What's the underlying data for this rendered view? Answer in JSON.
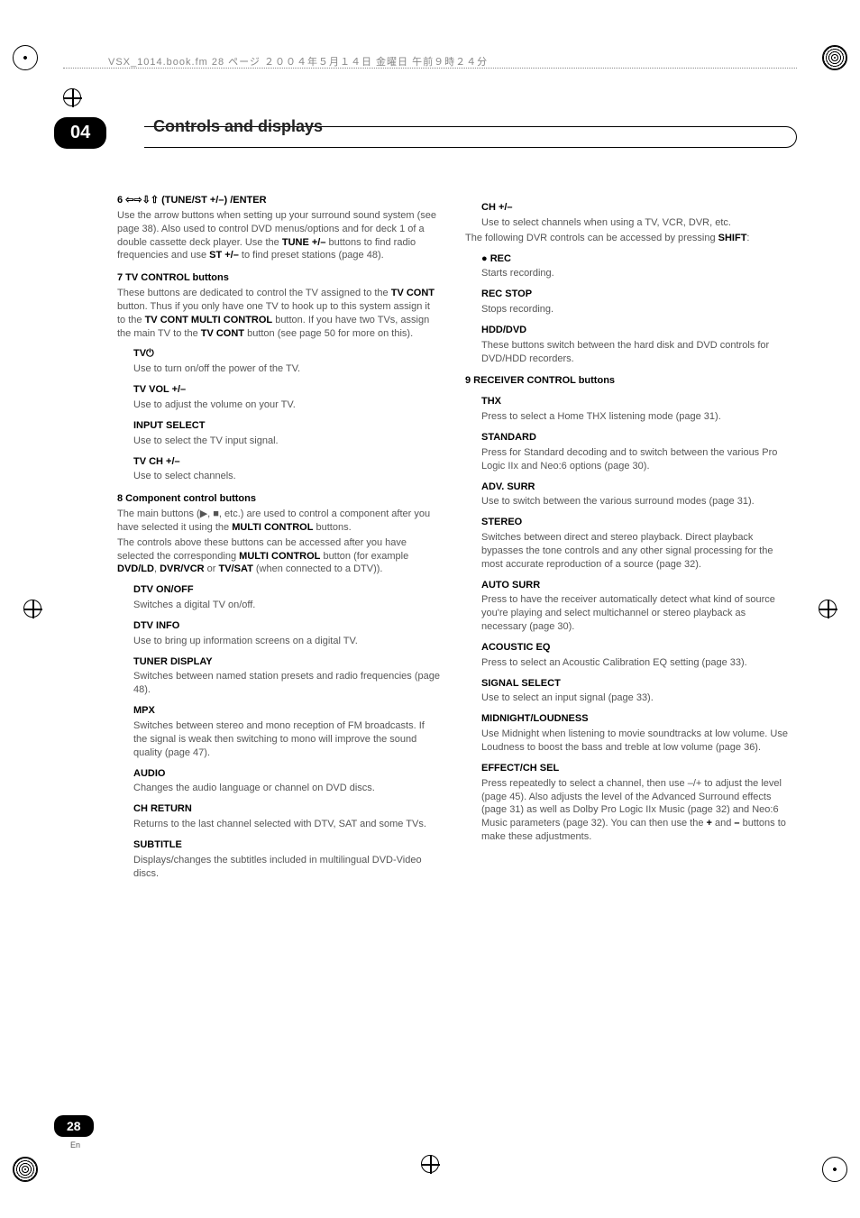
{
  "topline": "VSX_1014.book.fm 28 ページ ２００４年５月１４日 金曜日 午前９時２４分",
  "chapter": {
    "num": "04",
    "title": "Controls and displays"
  },
  "page": {
    "num": "28",
    "lang": "En"
  },
  "left": {
    "s6": {
      "head": "6    ⇦⇨⇩⇧ (TUNE/ST +/–) /ENTER",
      "body1": "Use the arrow buttons when setting up your surround sound system (see page 38). Also used to control DVD menus/options and for deck 1 of a double cassette deck player. Use the ",
      "b1": "TUNE +/–",
      "body2": " buttons to find radio frequencies and use ",
      "b2": "ST +/–",
      "body3": " to find preset stations (page 48)."
    },
    "s7": {
      "head": "7    TV CONTROL buttons",
      "body1": "These buttons are dedicated to control the TV assigned to the ",
      "b1": "TV CONT",
      "body2": " button. Thus if you only have one TV to hook up to this system assign it to the ",
      "b2": "TV CONT MULTI CONTROL",
      "body3": " button. If you have two TVs, assign the main TV to the ",
      "b3": "TV CONT",
      "body4": " button (see page 50 for more on this).",
      "tv_h": "TV⏻",
      "tv_b": "Use to turn on/off the power of the TV.",
      "tvvol_h": "TV VOL +/–",
      "tvvol_b": "Use to adjust the volume on your TV.",
      "inp_h": "INPUT SELECT",
      "inp_b": "Use to select the TV input signal.",
      "tvch_h": "TV CH +/–",
      "tvch_b": "Use to select channels."
    },
    "s8": {
      "head": "8    Component control buttons",
      "body1": "The main buttons (▶, ■, etc.) are used to control a component after you have selected it using the ",
      "b1": "MULTI CONTROL",
      "body2": " buttons.",
      "body3": "The controls above these buttons can be accessed after you have selected the corresponding ",
      "b2": "MULTI CONTROL",
      "body4": " button (for example ",
      "b3": "DVD/LD",
      "body5": ", ",
      "b4": "DVR/VCR",
      "body6": " or ",
      "b5": "TV/SAT",
      "body7": " (when connected to a DTV)).",
      "dtv_h": "DTV ON/OFF",
      "dtv_b": "Switches a digital TV on/off.",
      "info_h": "DTV INFO",
      "info_b": "Use to bring up information screens on a digital TV.",
      "tun_h": "TUNER DISPLAY",
      "tun_b": "Switches between named station presets and radio frequencies (page 48).",
      "mpx_h": "MPX",
      "mpx_b": "Switches between stereo and mono reception of FM broadcasts. If the signal is weak then switching to mono will improve the sound quality (page 47).",
      "aud_h": "AUDIO",
      "aud_b": "Changes the audio language or channel on DVD discs.",
      "chr_h": "CH RETURN",
      "chr_b": "Returns to the last channel selected with DTV, SAT and some TVs.",
      "sub_h": "SUBTITLE",
      "sub_b": "Displays/changes the subtitles included in multilingual DVD-Video discs."
    }
  },
  "right": {
    "ch_h": "CH +/–",
    "ch_b": "Use to select channels when using a TV, VCR, DVR, etc.",
    "dvr_intro1": "The following DVR controls can be accessed by pressing ",
    "dvr_b": "SHIFT",
    "dvr_intro2": ":",
    "rec_h": "● REC",
    "rec_b": "Starts recording.",
    "stop_h": "REC STOP",
    "stop_b": "Stops recording.",
    "hdd_h": "HDD/DVD",
    "hdd_b": "These buttons switch between the hard disk and DVD controls for DVD/HDD recorders.",
    "s9_head": "9    RECEIVER CONTROL buttons",
    "thx_h": "THX",
    "thx_b": "Press to select a Home THX listening mode (page 31).",
    "std_h": "STANDARD",
    "std_b": "Press for Standard decoding and to switch between the various Pro Logic IIx and Neo:6 options (page 30).",
    "adv_h": "ADV. SURR",
    "adv_b": "Use to switch between the various surround modes (page 31).",
    "ste_h": "STEREO",
    "ste_b": "Switches between direct and stereo playback. Direct playback bypasses the tone controls and any other signal processing for the most accurate reproduction of a source (page 32).",
    "auto_h": "AUTO SURR",
    "auto_b": "Press to have the receiver automatically detect what kind of source you're playing and select multichannel or stereo playback as necessary (page 30).",
    "eq_h": "ACOUSTIC EQ",
    "eq_b": "Press to select an Acoustic Calibration EQ setting (page 33).",
    "sig_h": "SIGNAL SELECT",
    "sig_b": "Use to select an input signal (page 33).",
    "mid_h": "MIDNIGHT/LOUDNESS",
    "mid_b": "Use Midnight when listening to movie soundtracks at low volume. Use Loudness to boost the bass and treble at low volume (page 36).",
    "eff_h": "EFFECT/CH SEL",
    "eff_b1": "Press repeatedly to select a channel, then use –/+ to adjust the level (page 45). Also adjusts the level of the Advanced Surround effects (page 31) as well as Dolby Pro Logic IIx Music (page 32) and Neo:6 Music parameters (page 32). You can then use the ",
    "eff_plus": "+",
    "eff_and": " and ",
    "eff_minus": "–",
    "eff_b2": " buttons to make these adjustments."
  }
}
